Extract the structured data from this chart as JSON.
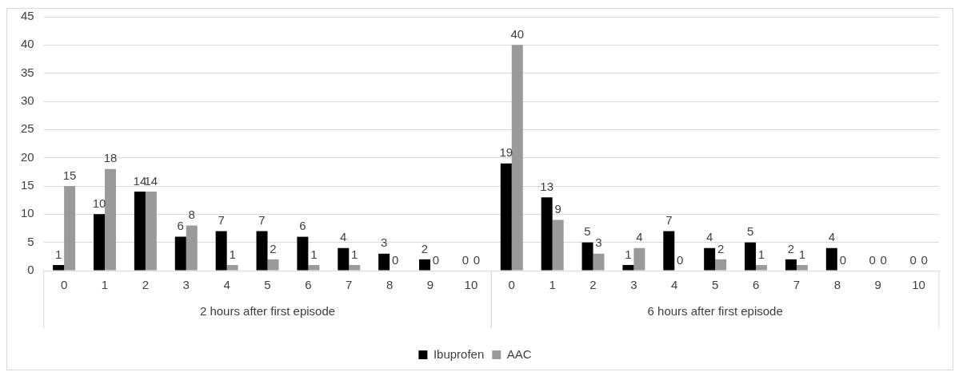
{
  "chart_data": {
    "type": "bar",
    "categories": [
      "0",
      "1",
      "2",
      "3",
      "4",
      "5",
      "6",
      "7",
      "8",
      "9",
      "10",
      "0",
      "1",
      "2",
      "3",
      "4",
      "5",
      "6",
      "7",
      "8",
      "9",
      "10"
    ],
    "annotations": [
      "2 hours after first episode",
      "6 hours after first episode"
    ],
    "series": [
      {
        "name": "Ibuprofen",
        "color": "#000000",
        "values": [
          1,
          10,
          14,
          6,
          7,
          7,
          6,
          4,
          3,
          2,
          0,
          19,
          13,
          5,
          1,
          7,
          4,
          5,
          2,
          4,
          0,
          0
        ]
      },
      {
        "name": "AAC",
        "color": "#9a9a9a",
        "values": [
          15,
          18,
          14,
          8,
          1,
          2,
          1,
          1,
          0,
          0,
          0,
          40,
          9,
          3,
          4,
          0,
          2,
          1,
          1,
          0,
          0,
          0
        ]
      }
    ],
    "ylim": [
      0,
      45
    ],
    "yticks": [
      0,
      5,
      10,
      15,
      20,
      25,
      30,
      35,
      40,
      45
    ],
    "grid": "y",
    "legend": "bottom",
    "data_labels": true
  }
}
